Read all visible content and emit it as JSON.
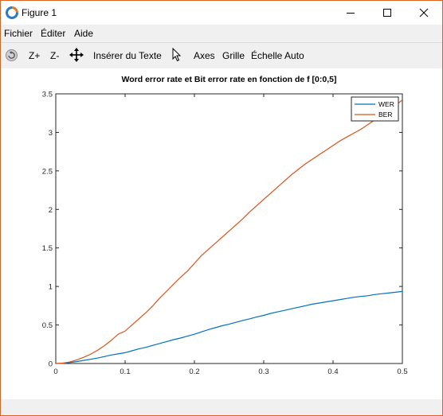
{
  "window": {
    "title": "Figure 1",
    "icon": "matlab-figure-icon",
    "accent_color": "#e06020"
  },
  "menu": [
    {
      "label": "Fichier"
    },
    {
      "label": "Éditer"
    },
    {
      "label": "Aide"
    }
  ],
  "toolbar": {
    "rotate_icon": "rotate-icon",
    "zoom_in_label": "Z+",
    "zoom_out_label": "Z-",
    "pan_icon": "pan-icon",
    "insert_text_label": "Insérer du Texte",
    "select_icon": "cursor-icon",
    "axes_label": "Axes",
    "grid_label": "Grille",
    "autoscale_label": "Échelle Auto"
  },
  "chart_data": {
    "type": "line",
    "title": "Word error rate et Bit error rate en fonction de f [0:0,5]",
    "xlabel": "",
    "ylabel": "",
    "xlim": [
      0,
      0.5
    ],
    "ylim": [
      0,
      3.5
    ],
    "xticks": [
      0,
      0.1,
      0.2,
      0.3,
      0.4,
      0.5
    ],
    "xtick_labels": [
      "0",
      "0.1",
      "0.2",
      "0.3",
      "0.4",
      "0.5"
    ],
    "yticks": [
      0,
      0.5,
      1,
      1.5,
      2,
      2.5,
      3,
      3.5
    ],
    "ytick_labels": [
      "0",
      "0.5",
      "1",
      "1.5",
      "2",
      "2.5",
      "3",
      "3.5"
    ],
    "grid": false,
    "legend": "top-right",
    "x": [
      0,
      0.01,
      0.02,
      0.03,
      0.04,
      0.05,
      0.06,
      0.07,
      0.08,
      0.09,
      0.1,
      0.11,
      0.12,
      0.13,
      0.14,
      0.15,
      0.16,
      0.17,
      0.18,
      0.19,
      0.2,
      0.21,
      0.22,
      0.23,
      0.24,
      0.25,
      0.26,
      0.27,
      0.28,
      0.29,
      0.3,
      0.31,
      0.32,
      0.33,
      0.34,
      0.35,
      0.36,
      0.37,
      0.38,
      0.39,
      0.4,
      0.41,
      0.42,
      0.43,
      0.44,
      0.45,
      0.46,
      0.47,
      0.48,
      0.49,
      0.5
    ],
    "series": [
      {
        "name": "WER",
        "color": "#0072bd",
        "values": [
          0,
          0.003,
          0.012,
          0.025,
          0.04,
          0.055,
          0.07,
          0.09,
          0.11,
          0.125,
          0.14,
          0.165,
          0.19,
          0.21,
          0.235,
          0.26,
          0.285,
          0.31,
          0.33,
          0.355,
          0.38,
          0.41,
          0.44,
          0.465,
          0.49,
          0.51,
          0.535,
          0.56,
          0.58,
          0.605,
          0.625,
          0.65,
          0.67,
          0.69,
          0.71,
          0.73,
          0.75,
          0.77,
          0.785,
          0.8,
          0.815,
          0.83,
          0.845,
          0.86,
          0.87,
          0.88,
          0.895,
          0.905,
          0.915,
          0.925,
          0.935
        ]
      },
      {
        "name": "BER",
        "color": "#d95319",
        "values": [
          0,
          0.005,
          0.02,
          0.045,
          0.08,
          0.12,
          0.17,
          0.23,
          0.3,
          0.38,
          0.42,
          0.5,
          0.58,
          0.66,
          0.75,
          0.85,
          0.94,
          1.03,
          1.12,
          1.2,
          1.3,
          1.4,
          1.48,
          1.56,
          1.64,
          1.72,
          1.8,
          1.88,
          1.97,
          2.05,
          2.13,
          2.21,
          2.29,
          2.37,
          2.45,
          2.52,
          2.59,
          2.65,
          2.71,
          2.77,
          2.83,
          2.89,
          2.94,
          2.99,
          3.04,
          3.1,
          3.16,
          3.22,
          3.29,
          3.35,
          3.42
        ]
      }
    ]
  }
}
